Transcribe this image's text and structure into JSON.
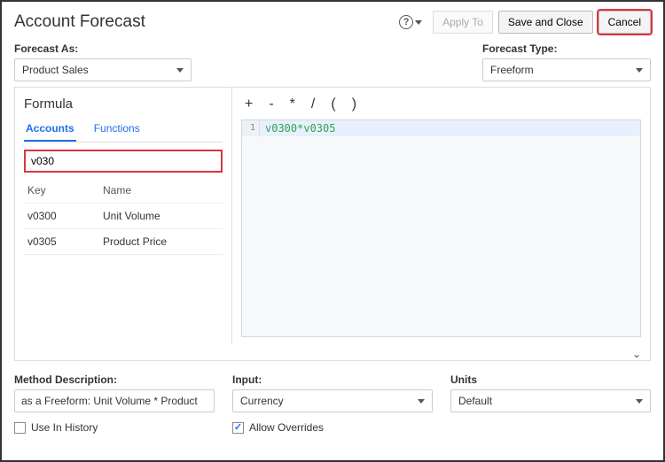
{
  "header": {
    "title": "Account Forecast",
    "apply_to": "Apply To",
    "save_close": "Save and Close",
    "cancel": "Cancel"
  },
  "forecast_as": {
    "label": "Forecast As:",
    "value": "Product Sales"
  },
  "forecast_type": {
    "label": "Forecast Type:",
    "value": "Freeform"
  },
  "formula": {
    "title": "Formula",
    "tabs": {
      "accounts": "Accounts",
      "functions": "Functions"
    },
    "search_value": "v030",
    "columns": {
      "key": "Key",
      "name": "Name"
    },
    "rows": [
      {
        "key": "v0300",
        "name": "Unit Volume"
      },
      {
        "key": "v0305",
        "name": "Product Price"
      }
    ],
    "operators": {
      "plus": "+",
      "minus": "-",
      "mult": "*",
      "div": "/",
      "lpar": "(",
      "rpar": ")"
    },
    "editor": {
      "line_no": "1",
      "content": "v0300*v0305"
    }
  },
  "method_desc": {
    "label": "Method Description:",
    "value": "as a Freeform:  Unit Volume * Product"
  },
  "input": {
    "label": "Input:",
    "value": "Currency"
  },
  "units": {
    "label": "Units",
    "value": "Default"
  },
  "checks": {
    "use_history": "Use In History",
    "allow_overrides": "Allow Overrides"
  }
}
